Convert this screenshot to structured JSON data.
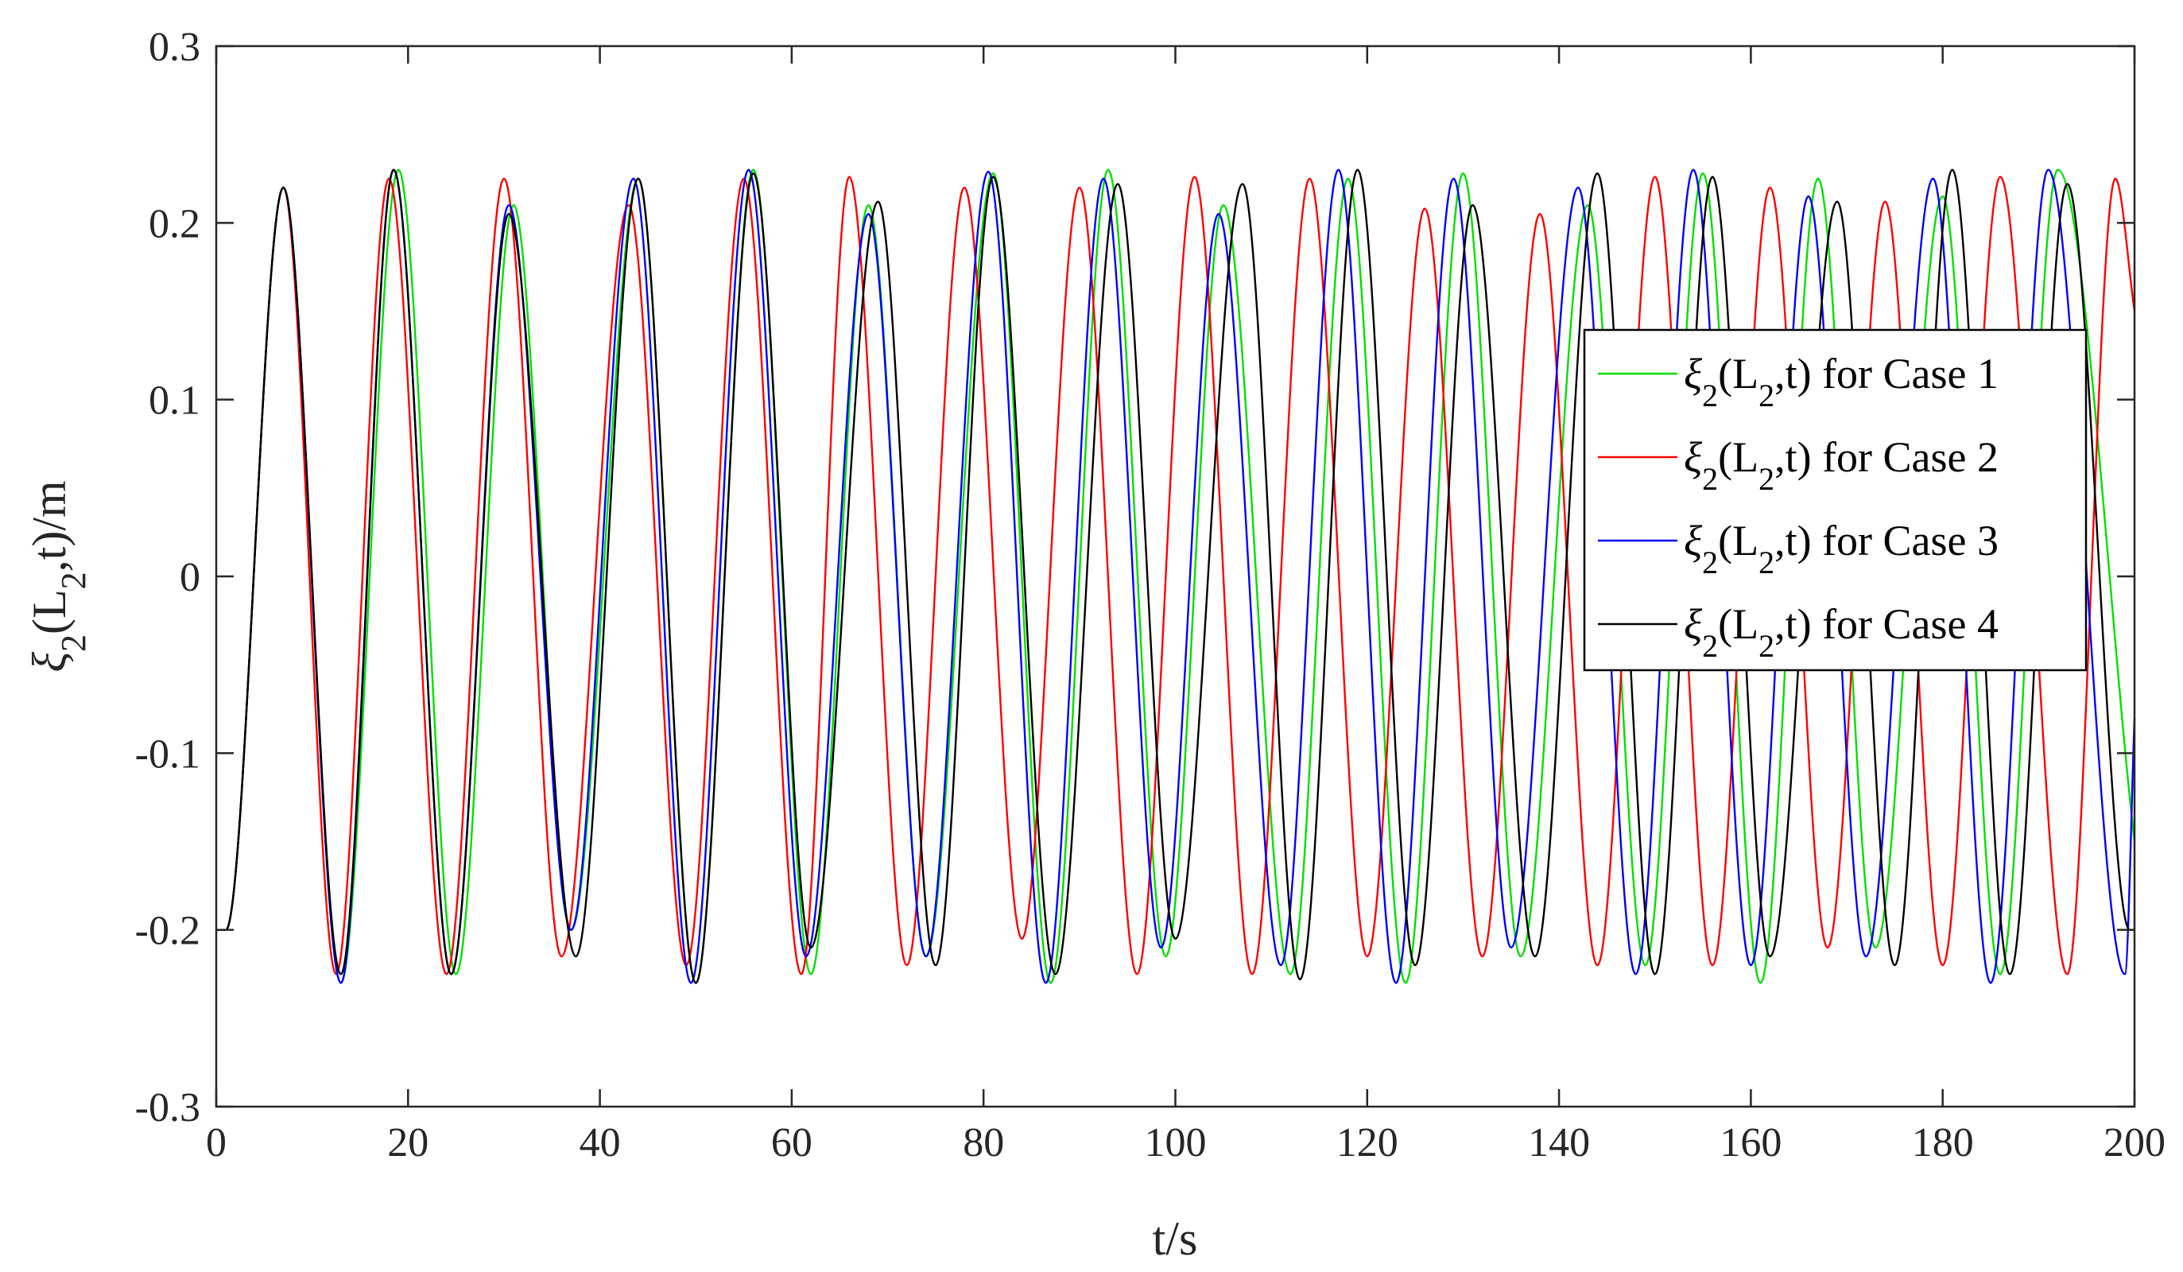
{
  "chart_data": {
    "type": "line",
    "title": "",
    "xlabel": "t/s",
    "ylabel": {
      "base": "ξ",
      "sub": "2",
      "mid": "(L",
      "sub2": "2",
      "end": ",t)/m"
    },
    "xlim": [
      0,
      200
    ],
    "ylim": [
      -0.3,
      0.3
    ],
    "xticks": [
      "0",
      "20",
      "40",
      "60",
      "80",
      "100",
      "120",
      "140",
      "160",
      "180",
      "200"
    ],
    "yticks": [
      "-0.3",
      "-0.2",
      "-0.1",
      "0",
      "0.1",
      "0.2",
      "0.3"
    ],
    "grid": false,
    "legend_position": "right",
    "colors": {
      "axes": "#262626",
      "legend_border": "#000000"
    },
    "series": [
      {
        "name": "ξ2(L2,t) for Case 1",
        "label": {
          "base": "ξ",
          "sub": "2",
          "mid": "(L",
          "sub2": "2",
          "end": ",t) for Case 1"
        },
        "color": "#00e000",
        "x": [
          0,
          1,
          7,
          13,
          19,
          25,
          31,
          37,
          44,
          50,
          56,
          62,
          68,
          74,
          81,
          87,
          93,
          99,
          105,
          112,
          118,
          124,
          130,
          136,
          143,
          149,
          155,
          161,
          167,
          173,
          180,
          186,
          192,
          200
        ],
        "y": [
          -0.2,
          -0.2,
          0.22,
          -0.23,
          0.23,
          -0.225,
          0.21,
          -0.2,
          0.225,
          -0.23,
          0.23,
          -0.225,
          0.21,
          -0.215,
          0.228,
          -0.23,
          0.23,
          -0.215,
          0.21,
          -0.225,
          0.225,
          -0.23,
          0.228,
          -0.215,
          0.21,
          -0.22,
          0.228,
          -0.23,
          0.225,
          -0.21,
          0.215,
          -0.225,
          0.23,
          -0.15
        ]
      },
      {
        "name": "ξ2(L2,t) for Case 2",
        "label": {
          "base": "ξ",
          "sub": "2",
          "mid": "(L",
          "sub2": "2",
          "end": ",t) for Case 2"
        },
        "color": "#ff0000",
        "x": [
          0,
          1,
          7,
          12.5,
          18,
          24,
          30,
          36,
          43,
          49,
          55,
          61,
          66,
          72,
          78,
          84,
          90,
          96,
          102,
          108,
          114,
          120,
          126,
          132,
          138,
          144,
          150,
          156,
          162,
          168,
          174,
          180,
          186,
          193,
          198,
          200
        ],
        "y": [
          -0.2,
          -0.2,
          0.22,
          -0.225,
          0.225,
          -0.225,
          0.225,
          -0.215,
          0.21,
          -0.22,
          0.225,
          -0.225,
          0.226,
          -0.22,
          0.22,
          -0.205,
          0.22,
          -0.225,
          0.226,
          -0.225,
          0.225,
          -0.215,
          0.208,
          -0.215,
          0.205,
          -0.22,
          0.226,
          -0.22,
          0.22,
          -0.21,
          0.212,
          -0.22,
          0.226,
          -0.225,
          0.225,
          0.15
        ]
      },
      {
        "name": "ξ2(L2,t) for Case 3",
        "label": {
          "base": "ξ",
          "sub": "2",
          "mid": "(L",
          "sub2": "2",
          "end": ",t) for Case 3"
        },
        "color": "#0000ff",
        "x": [
          0,
          1,
          7,
          13,
          18.5,
          24.5,
          30.5,
          37,
          43.5,
          49.5,
          55.5,
          61.5,
          68,
          74,
          80.5,
          86.5,
          92.5,
          98.5,
          104.5,
          111,
          117,
          123,
          129,
          135,
          142,
          148,
          154,
          160,
          166,
          172,
          179,
          185,
          191,
          199,
          200
        ],
        "y": [
          -0.2,
          -0.2,
          0.22,
          -0.23,
          0.23,
          -0.225,
          0.21,
          -0.2,
          0.225,
          -0.23,
          0.23,
          -0.215,
          0.205,
          -0.215,
          0.229,
          -0.23,
          0.225,
          -0.21,
          0.205,
          -0.22,
          0.23,
          -0.23,
          0.225,
          -0.21,
          0.22,
          -0.225,
          0.23,
          -0.22,
          0.215,
          -0.215,
          0.225,
          -0.23,
          0.23,
          -0.225,
          -0.08
        ]
      },
      {
        "name": "ξ2(L2,t) for Case 4",
        "label": {
          "base": "ξ",
          "sub": "2",
          "mid": "(L",
          "sub2": "2",
          "end": ",t) for Case 4"
        },
        "color": "#000000",
        "x": [
          0,
          1,
          7,
          13,
          18.5,
          24.5,
          30.5,
          37.5,
          44,
          50,
          56,
          62,
          69,
          75,
          81,
          87.5,
          94,
          100,
          107,
          113,
          119,
          125,
          131,
          137.5,
          144,
          150,
          156,
          162,
          169,
          175,
          181,
          187,
          193,
          199.5,
          200
        ],
        "y": [
          -0.2,
          -0.2,
          0.22,
          -0.225,
          0.23,
          -0.225,
          0.205,
          -0.215,
          0.225,
          -0.23,
          0.228,
          -0.21,
          0.212,
          -0.22,
          0.226,
          -0.225,
          0.222,
          -0.205,
          0.222,
          -0.228,
          0.23,
          -0.22,
          0.21,
          -0.215,
          0.228,
          -0.225,
          0.226,
          -0.215,
          0.212,
          -0.22,
          0.23,
          -0.225,
          0.222,
          -0.2,
          -0.2
        ]
      }
    ]
  }
}
